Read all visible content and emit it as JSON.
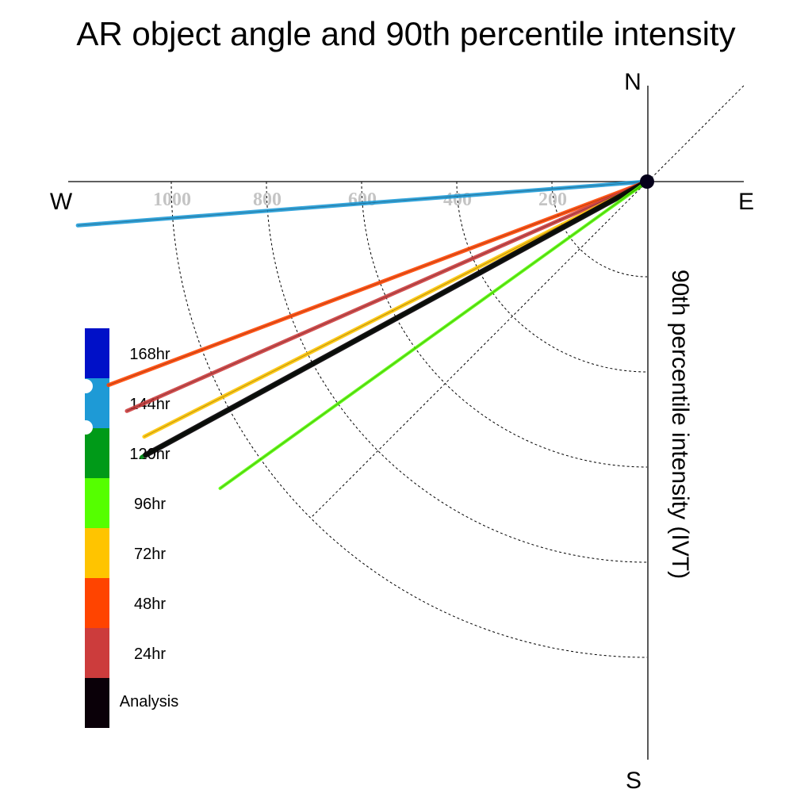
{
  "chart_data": {
    "type": "polar-vector",
    "title": "AR object angle and 90th percentile intensity",
    "axis_label": "90th percentile intensity (IVT)",
    "compass": {
      "north": "N",
      "south": "S",
      "east": "E",
      "west": "W"
    },
    "radial_ticks": [
      200,
      400,
      600,
      800,
      1000
    ],
    "radial_range": [
      0,
      1200
    ],
    "gridlines": "dotted",
    "legend_position": "left",
    "legend": [
      {
        "label": "168hr",
        "color": "#0010c8"
      },
      {
        "label": "144hr",
        "color": "#1e9ad6"
      },
      {
        "label": "120hr",
        "color": "#009a18"
      },
      {
        "label": "96hr",
        "color": "#55ff00"
      },
      {
        "label": "72hr",
        "color": "#ffc400"
      },
      {
        "label": "48hr",
        "color": "#ff4400"
      },
      {
        "label": "24hr",
        "color": "#cc3c3c"
      },
      {
        "label": "Analysis",
        "color": "#0a0008"
      }
    ],
    "series": [
      {
        "name": "144hr",
        "color": "#1e9ad6",
        "direction_deg": 265.6,
        "intensity": 1200,
        "width": 5
      },
      {
        "name": "48hr",
        "color": "#ff4400",
        "direction_deg": 249.3,
        "intensity": 1210,
        "width": 5
      },
      {
        "name": "24hr",
        "color": "#cc3c3c",
        "direction_deg": 246.2,
        "intensity": 1195,
        "width": 5
      },
      {
        "name": "72hr",
        "color": "#ffc400",
        "direction_deg": 243.1,
        "intensity": 1185,
        "width": 5
      },
      {
        "name": "120hr",
        "color": "#009a18",
        "direction_deg": 241.4,
        "intensity": 1210,
        "width": 5
      },
      {
        "name": "Analysis",
        "color": "#0a0008",
        "direction_deg": 241.4,
        "intensity": 1200,
        "width": 7
      },
      {
        "name": "96hr",
        "color": "#55ff00",
        "direction_deg": 234.3,
        "intensity": 1105,
        "width": 4
      }
    ]
  }
}
